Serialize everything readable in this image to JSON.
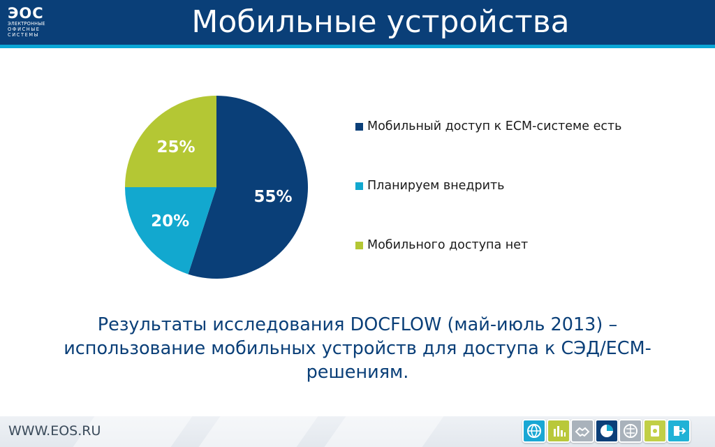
{
  "header": {
    "logo": {
      "mark": "ЭОС",
      "lines": [
        "ЭЛЕКТРОННЫЕ",
        "ОФИСНЫЕ",
        "СИСТЕМЫ"
      ]
    },
    "title": "Мобильные устройства"
  },
  "chart_data": {
    "type": "pie",
    "title": "",
    "slices": [
      {
        "label": "Мобильный доступ к ECM-системе есть",
        "value": 55,
        "display": "55%",
        "color": "#0a3f78"
      },
      {
        "label": "Планируем внедрить",
        "value": 20,
        "display": "20%",
        "color": "#12a8cf"
      },
      {
        "label": "Мобильного доступа нет",
        "value": 25,
        "display": "25%",
        "color": "#b4c734"
      }
    ],
    "start": "12 o'clock",
    "direction": "clockwise",
    "legend_position": "right"
  },
  "caption": {
    "line1": "Результаты исследования DOCFLOW (май-июль 2013) –",
    "line2": "использование мобильных устройств для доступа к СЭД/ECM-",
    "line3": "решениям."
  },
  "footer": {
    "url": "WWW.EOS.RU",
    "icons": [
      {
        "name": "globe-icon",
        "color": "#1aa7d4"
      },
      {
        "name": "bar-chart-icon",
        "color": "#b9c83a"
      },
      {
        "name": "handshake-icon",
        "color": "#a9b2bb"
      },
      {
        "name": "pie-chart-icon",
        "color": "#0c3f78"
      },
      {
        "name": "network-icon",
        "color": "#a9b2bb"
      },
      {
        "name": "document-icon",
        "color": "#c1cf46"
      },
      {
        "name": "sign-in-icon",
        "color": "#20b2d6"
      }
    ]
  }
}
